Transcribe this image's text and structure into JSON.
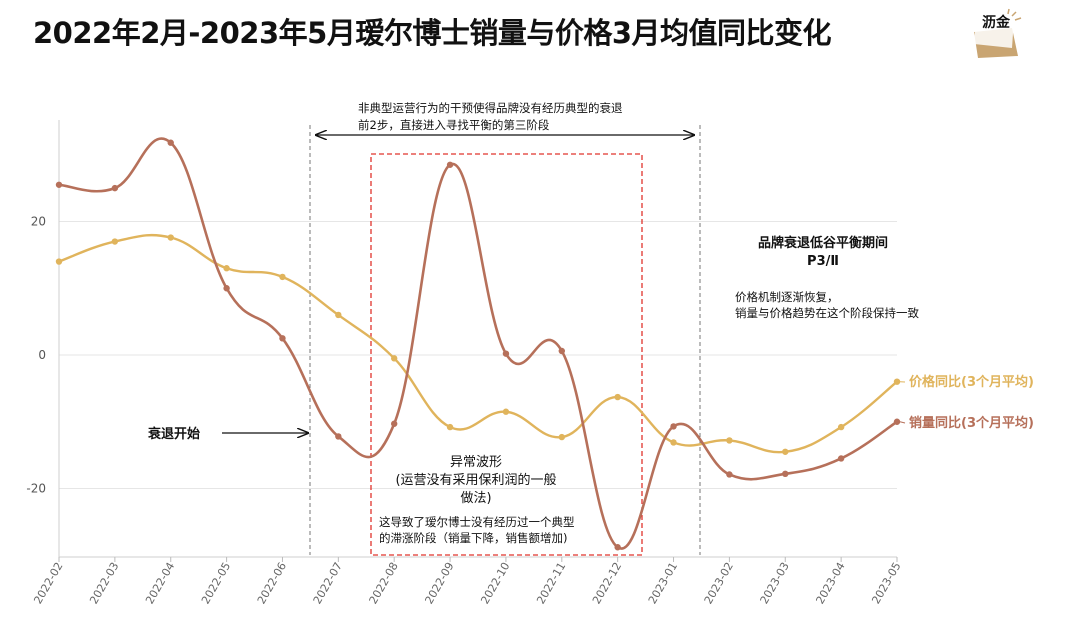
{
  "header": {
    "title": "2022年2月-2023年5月瑷尔博士销量与价格3月均值同比变化",
    "logo_text": "沥金"
  },
  "annotations": {
    "top_arrow_note_line1": "非典型运营行为的干预使得品牌没有经历典型的衰退",
    "top_arrow_note_line2": "前2步，直接进入寻找平衡的第三阶段",
    "phase_title_line1": "品牌衰退低谷平衡期间",
    "phase_title_line2": "P3/Ⅱ",
    "phase_desc_line1": "价格机制逐渐恢复，",
    "phase_desc_line2": "销量与价格趋势在这个阶段保持一致",
    "decline_start": "衰退开始",
    "abnormal_line1": "异常波形",
    "abnormal_line2": "(运营没有采用保利润的一般",
    "abnormal_line3": "做法)",
    "abnormal_sub_line1": "这导致了瑷尔博士没有经历过一个典型",
    "abnormal_sub_line2": "的滞涨阶段（销量下降，销售额增加)"
  },
  "chart_data": {
    "type": "line",
    "title": "2022年2月-2023年5月瑷尔博士销量与价格3月均值同比变化",
    "xlabel": "",
    "ylabel": "",
    "categories": [
      "2022-02",
      "2022-03",
      "2022-04",
      "2022-05",
      "2022-06",
      "2022-07",
      "2022-08",
      "2022-09",
      "2022-10",
      "2022-11",
      "2022-12",
      "2023-01",
      "2023-02",
      "2023-03",
      "2023-04",
      "2023-05"
    ],
    "y_ticks": [
      20,
      0,
      -20
    ],
    "ylim": [
      -30,
      35
    ],
    "grid": "horizontal",
    "series": [
      {
        "name": "价格同比(3个月平均)",
        "color": "#e0b45c",
        "values": [
          14,
          17,
          17.6,
          13,
          11.7,
          6,
          -0.5,
          -10.8,
          -8.5,
          -12.3,
          -6.3,
          -13.1,
          -12.8,
          -14.5,
          -10.8,
          -4
        ]
      },
      {
        "name": "销量同比(3个月平均)",
        "color": "#b6705a",
        "values": [
          25.5,
          25,
          31.8,
          10,
          2.5,
          -12.2,
          -10.3,
          28.5,
          0.2,
          0.6,
          -28.8,
          -10.7,
          -17.9,
          -17.8,
          -15.5,
          -10
        ]
      }
    ]
  }
}
